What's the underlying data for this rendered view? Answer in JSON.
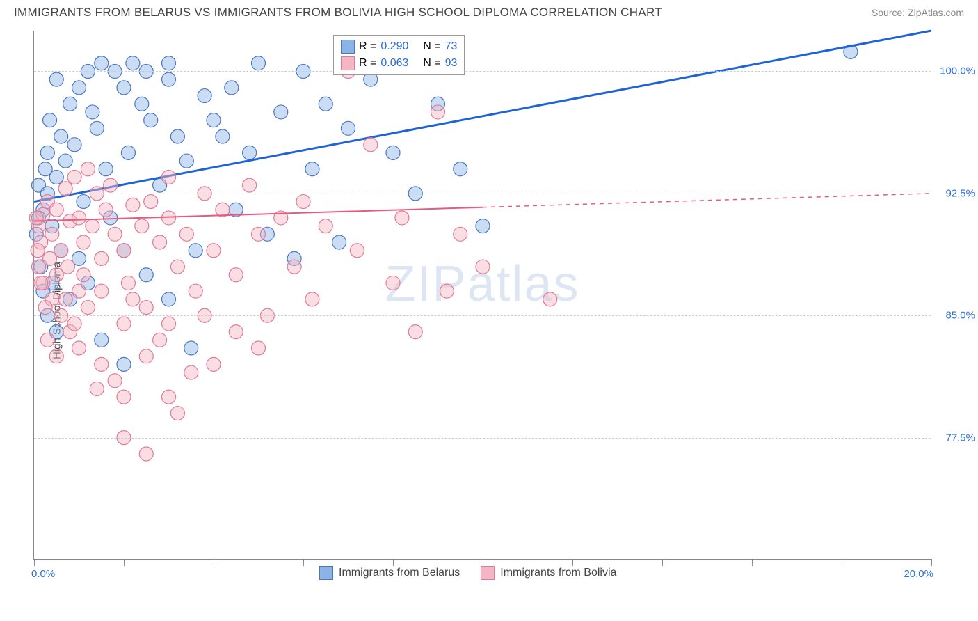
{
  "title": "IMMIGRANTS FROM BELARUS VS IMMIGRANTS FROM BOLIVIA HIGH SCHOOL DIPLOMA CORRELATION CHART",
  "source": "Source: ZipAtlas.com",
  "ylabel": "High School Diploma",
  "watermark": {
    "zip": "ZIP",
    "atlas": "atlas"
  },
  "chart": {
    "type": "scatter",
    "xlim": [
      0,
      20
    ],
    "ylim": [
      70,
      102.5
    ],
    "xticks_label": {
      "min": "0.0%",
      "max": "20.0%"
    },
    "xtick_positions": [
      0,
      2,
      4,
      6,
      8,
      10,
      12,
      14,
      16,
      18,
      20
    ],
    "yticks": [
      {
        "v": 77.5,
        "label": "77.5%"
      },
      {
        "v": 85.0,
        "label": "85.0%"
      },
      {
        "v": 92.5,
        "label": "92.5%"
      },
      {
        "v": 100.0,
        "label": "100.0%"
      }
    ],
    "background_color": "#ffffff",
    "grid_color": "#cccccc",
    "marker_radius": 10,
    "marker_opacity": 0.45,
    "marker_stroke_width": 1.2,
    "series": [
      {
        "name": "Immigrants from Belarus",
        "color_fill": "#8bb3e6",
        "color_stroke": "#4a78c2",
        "line_color": "#1f63d6",
        "line_width": 3,
        "r_label": "R =",
        "r_value": "0.290",
        "n_label": "N =",
        "n_value": "73",
        "trend": {
          "x1": 0,
          "y1": 92.0,
          "x2": 20,
          "y2": 102.5,
          "dash_after_x": 20
        },
        "points": [
          [
            0.1,
            93.0
          ],
          [
            0.2,
            91.5
          ],
          [
            0.3,
            92.5
          ],
          [
            0.25,
            94.0
          ],
          [
            0.4,
            90.5
          ],
          [
            0.3,
            95.0
          ],
          [
            0.5,
            93.5
          ],
          [
            0.6,
            96.0
          ],
          [
            0.7,
            94.5
          ],
          [
            0.35,
            97.0
          ],
          [
            0.8,
            98.0
          ],
          [
            0.9,
            95.5
          ],
          [
            1.0,
            99.0
          ],
          [
            0.5,
            99.5
          ],
          [
            1.2,
            100.0
          ],
          [
            1.1,
            92.0
          ],
          [
            1.3,
            97.5
          ],
          [
            1.5,
            100.5
          ],
          [
            1.4,
            96.5
          ],
          [
            1.6,
            94.0
          ],
          [
            1.8,
            100.0
          ],
          [
            2.0,
            99.0
          ],
          [
            1.7,
            91.0
          ],
          [
            2.2,
            100.5
          ],
          [
            2.1,
            95.0
          ],
          [
            2.4,
            98.0
          ],
          [
            2.6,
            97.0
          ],
          [
            2.5,
            100.0
          ],
          [
            2.8,
            93.0
          ],
          [
            3.0,
            99.5
          ],
          [
            3.2,
            96.0
          ],
          [
            3.0,
            100.5
          ],
          [
            3.4,
            94.5
          ],
          [
            3.6,
            89.0
          ],
          [
            3.8,
            98.5
          ],
          [
            4.0,
            97.0
          ],
          [
            4.2,
            96.0
          ],
          [
            4.4,
            99.0
          ],
          [
            4.5,
            91.5
          ],
          [
            4.8,
            95.0
          ],
          [
            5.0,
            100.5
          ],
          [
            5.2,
            90.0
          ],
          [
            5.5,
            97.5
          ],
          [
            5.8,
            88.5
          ],
          [
            6.0,
            100.0
          ],
          [
            6.2,
            94.0
          ],
          [
            6.5,
            98.0
          ],
          [
            6.8,
            89.5
          ],
          [
            7.0,
            96.5
          ],
          [
            7.5,
            99.5
          ],
          [
            8.0,
            95.0
          ],
          [
            8.5,
            92.5
          ],
          [
            9.0,
            98.0
          ],
          [
            9.5,
            94.0
          ],
          [
            10.0,
            90.5
          ],
          [
            0.15,
            88.0
          ],
          [
            0.4,
            87.0
          ],
          [
            0.8,
            86.0
          ],
          [
            1.5,
            83.5
          ],
          [
            2.0,
            82.0
          ],
          [
            1.0,
            88.5
          ],
          [
            0.6,
            89.0
          ],
          [
            1.2,
            87.0
          ],
          [
            2.5,
            87.5
          ],
          [
            2.0,
            89.0
          ],
          [
            3.0,
            86.0
          ],
          [
            3.5,
            83.0
          ],
          [
            0.2,
            86.5
          ],
          [
            0.3,
            85.0
          ],
          [
            0.5,
            84.0
          ],
          [
            18.2,
            101.2
          ],
          [
            0.05,
            90.0
          ],
          [
            0.1,
            91.0
          ]
        ]
      },
      {
        "name": "Immigrants from Bolivia",
        "color_fill": "#f4b6c4",
        "color_stroke": "#e07a96",
        "line_color": "#e85a7d",
        "line_width": 2,
        "r_label": "R =",
        "r_value": "0.063",
        "n_label": "N =",
        "n_value": "93",
        "trend": {
          "x1": 0,
          "y1": 90.8,
          "x2": 20,
          "y2": 92.5,
          "dash_after_x": 10
        },
        "points": [
          [
            0.1,
            90.5
          ],
          [
            0.2,
            91.2
          ],
          [
            0.15,
            89.5
          ],
          [
            0.3,
            92.0
          ],
          [
            0.4,
            90.0
          ],
          [
            0.35,
            88.5
          ],
          [
            0.5,
            91.5
          ],
          [
            0.6,
            89.0
          ],
          [
            0.7,
            92.8
          ],
          [
            0.5,
            87.5
          ],
          [
            0.8,
            90.8
          ],
          [
            0.9,
            93.5
          ],
          [
            0.75,
            88.0
          ],
          [
            1.0,
            91.0
          ],
          [
            1.1,
            89.5
          ],
          [
            1.2,
            94.0
          ],
          [
            1.0,
            86.5
          ],
          [
            1.3,
            90.5
          ],
          [
            1.4,
            92.5
          ],
          [
            1.5,
            88.5
          ],
          [
            1.6,
            91.5
          ],
          [
            1.8,
            90.0
          ],
          [
            1.7,
            93.0
          ],
          [
            2.0,
            89.0
          ],
          [
            2.2,
            91.8
          ],
          [
            2.1,
            87.0
          ],
          [
            2.4,
            90.5
          ],
          [
            2.6,
            92.0
          ],
          [
            2.5,
            85.5
          ],
          [
            2.8,
            89.5
          ],
          [
            3.0,
            91.0
          ],
          [
            3.2,
            88.0
          ],
          [
            3.0,
            93.5
          ],
          [
            3.4,
            90.0
          ],
          [
            3.6,
            86.5
          ],
          [
            3.8,
            92.5
          ],
          [
            4.0,
            89.0
          ],
          [
            4.2,
            91.5
          ],
          [
            4.5,
            87.5
          ],
          [
            4.8,
            93.0
          ],
          [
            5.0,
            90.0
          ],
          [
            5.2,
            85.0
          ],
          [
            5.5,
            91.0
          ],
          [
            5.8,
            88.0
          ],
          [
            6.0,
            92.0
          ],
          [
            6.2,
            86.0
          ],
          [
            6.5,
            90.5
          ],
          [
            7.0,
            100.0
          ],
          [
            7.2,
            89.0
          ],
          [
            7.5,
            95.5
          ],
          [
            8.0,
            87.0
          ],
          [
            8.2,
            91.0
          ],
          [
            8.5,
            84.0
          ],
          [
            9.0,
            97.5
          ],
          [
            9.2,
            86.5
          ],
          [
            9.5,
            90.0
          ],
          [
            10.0,
            88.0
          ],
          [
            11.5,
            86.0
          ],
          [
            0.2,
            87.0
          ],
          [
            0.4,
            86.0
          ],
          [
            0.6,
            85.0
          ],
          [
            0.8,
            84.0
          ],
          [
            1.0,
            83.0
          ],
          [
            1.5,
            82.0
          ],
          [
            1.2,
            85.5
          ],
          [
            2.0,
            84.5
          ],
          [
            1.8,
            81.0
          ],
          [
            2.5,
            82.5
          ],
          [
            2.2,
            86.0
          ],
          [
            3.0,
            80.0
          ],
          [
            2.8,
            83.5
          ],
          [
            3.5,
            81.5
          ],
          [
            3.2,
            79.0
          ],
          [
            4.0,
            82.0
          ],
          [
            3.8,
            85.0
          ],
          [
            2.0,
            77.5
          ],
          [
            2.5,
            76.5
          ],
          [
            1.5,
            86.5
          ],
          [
            0.3,
            83.5
          ],
          [
            0.5,
            82.5
          ],
          [
            0.7,
            86.0
          ],
          [
            0.9,
            84.5
          ],
          [
            1.1,
            87.5
          ],
          [
            0.1,
            88.0
          ],
          [
            0.15,
            87.0
          ],
          [
            0.25,
            85.5
          ],
          [
            0.05,
            91.0
          ],
          [
            0.08,
            89.0
          ],
          [
            1.4,
            80.5
          ],
          [
            4.5,
            84.0
          ],
          [
            5.0,
            83.0
          ],
          [
            3.0,
            84.5
          ],
          [
            2.0,
            80.0
          ]
        ]
      }
    ]
  },
  "legend_bottom": [
    {
      "label": "Immigrants from Belarus",
      "fill": "#8bb3e6",
      "stroke": "#4a78c2"
    },
    {
      "label": "Immigrants from Bolivia",
      "fill": "#f4b6c4",
      "stroke": "#e07a96"
    }
  ]
}
